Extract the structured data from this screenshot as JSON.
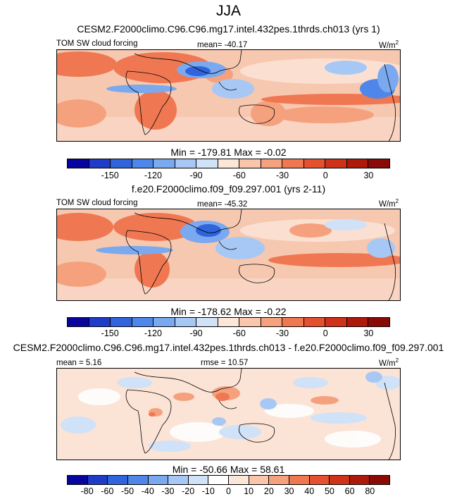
{
  "title": "JJA",
  "panels": [
    {
      "case_title": "CESM2.F2000climo.C96.C96.mg17.intel.432pes.1thrds.ch013 (yrs 1)",
      "left_label": "TOM SW cloud forcing",
      "center_label": "mean= -40.17",
      "units": "W/m",
      "units_exp": "2",
      "minmax": "Min = -179.81 Max =  -0.02",
      "colorbar": {
        "colors": [
          "#07059e",
          "#1f3cc8",
          "#2f64dc",
          "#4e86ea",
          "#7aa9f0",
          "#a7c8f5",
          "#cfe2f8",
          "#fce6d8",
          "#f9c5ab",
          "#f5a17e",
          "#ef7852",
          "#e5512f",
          "#cf3119",
          "#ad1a0c",
          "#8a0a05"
        ],
        "tick_labels": [
          "-150",
          "-120",
          "-90",
          "-60",
          "-30",
          "0",
          "30"
        ]
      }
    },
    {
      "case_title": "f.e20.F2000climo.f09_f09.297.001 (yrs 2-11)",
      "left_label": "TOM SW cloud forcing",
      "center_label": "mean= -45.32",
      "units": "W/m",
      "units_exp": "2",
      "minmax": "Min = -178.62 Max =  -0.22",
      "colorbar": {
        "colors": [
          "#07059e",
          "#1f3cc8",
          "#2f64dc",
          "#4e86ea",
          "#7aa9f0",
          "#a7c8f5",
          "#cfe2f8",
          "#fce6d8",
          "#f9c5ab",
          "#f5a17e",
          "#ef7852",
          "#e5512f",
          "#cf3119",
          "#ad1a0c",
          "#8a0a05"
        ],
        "tick_labels": [
          "-150",
          "-120",
          "-90",
          "-60",
          "-30",
          "0",
          "30"
        ]
      }
    },
    {
      "case_title": "CESM2.F2000climo.C96.C96.mg17.intel.432pes.1thrds.ch013 - f.e20.F2000climo.f09_f09.297.001",
      "left_label": "mean =  5.16",
      "center_label": "rmse = 10.57",
      "units": "W/m",
      "units_exp": "2",
      "minmax": "Min = -50.66 Max =  58.61",
      "colorbar": {
        "colors": [
          "#07059e",
          "#1f3cc8",
          "#2f64dc",
          "#4e86ea",
          "#7aa9f0",
          "#a7c8f5",
          "#cfe2f8",
          "#ffffff",
          "#fce6d8",
          "#f9c5ab",
          "#f5a17e",
          "#ef7852",
          "#e5512f",
          "#cf3119",
          "#ad1a0c",
          "#8a0a05"
        ],
        "tick_labels": [
          "-80",
          "-60",
          "-50",
          "-40",
          "-30",
          "-20",
          "-10",
          "0",
          "10",
          "20",
          "30",
          "40",
          "50",
          "60",
          "80"
        ]
      }
    }
  ],
  "chart_data": {
    "type": "heatmap",
    "title": "JJA",
    "variable": "TOM SW cloud forcing",
    "units": "W/m2",
    "panels": [
      {
        "name": "CESM2.F2000climo.C96.C96.mg17.intel.432pes.1thrds.ch013 (yrs 1)",
        "mean": -40.17,
        "min": -179.81,
        "max": -0.02,
        "contour_levels": [
          -150,
          -120,
          -90,
          -60,
          -30,
          0,
          30
        ]
      },
      {
        "name": "f.e20.F2000climo.f09_f09.297.001 (yrs 2-11)",
        "mean": -45.32,
        "min": -178.62,
        "max": -0.22,
        "contour_levels": [
          -150,
          -120,
          -90,
          -60,
          -30,
          0,
          30
        ]
      },
      {
        "name": "CESM2.F2000climo.C96.C96.mg17.intel.432pes.1thrds.ch013 - f.e20.F2000climo.f09_f09.297.001",
        "mean": 5.16,
        "rmse": 10.57,
        "min": -50.66,
        "max": 58.61,
        "contour_levels": [
          -80,
          -60,
          -50,
          -40,
          -30,
          -20,
          -10,
          0,
          10,
          20,
          30,
          40,
          50,
          60,
          80
        ]
      }
    ]
  }
}
